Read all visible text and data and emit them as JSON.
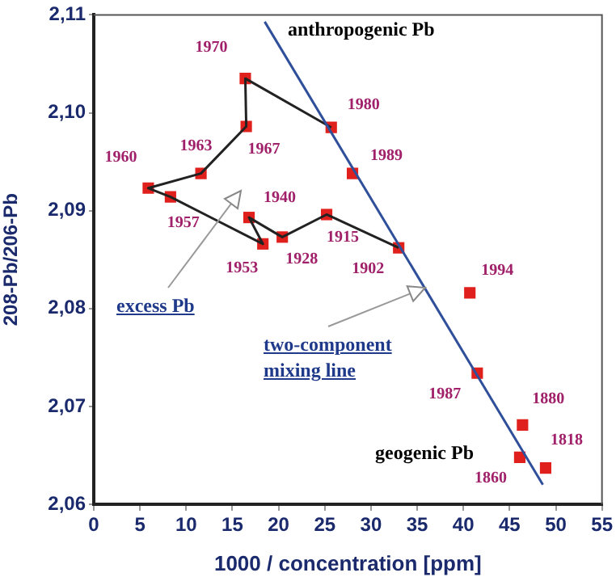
{
  "chart_data": {
    "type": "scatter",
    "xlabel": "1000 / concentration [ppm]",
    "ylabel": "208-Pb/206-Pb",
    "xlim": [
      0,
      55
    ],
    "xticks": [
      0,
      5,
      10,
      15,
      20,
      25,
      30,
      35,
      40,
      45,
      50,
      55
    ],
    "ylim": [
      2.06,
      2.11
    ],
    "yticks": [
      {
        "value": 2.06,
        "label": "2,06"
      },
      {
        "value": 2.07,
        "label": "2,07"
      },
      {
        "value": 2.08,
        "label": "2,08"
      },
      {
        "value": 2.09,
        "label": "2,09"
      },
      {
        "value": 2.1,
        "label": "2,10"
      },
      {
        "value": 2.11,
        "label": "2,11"
      }
    ],
    "grid": false,
    "legend": false,
    "series": [
      {
        "type": "line",
        "color": "#2f4f9a",
        "marker": "none",
        "x": [
          18.5,
          48.6
        ],
        "values": [
          2.1093,
          2.062
        ]
      },
      {
        "type": "line",
        "color": "#222222",
        "marker": "none",
        "x": [
          33.0,
          25.2,
          20.4,
          16.8,
          18.3,
          8.3,
          5.9,
          11.6,
          16.5,
          16.4,
          25.7
        ],
        "values": [
          2.0862,
          2.0896,
          2.0873,
          2.0893,
          2.0866,
          2.0914,
          2.0923,
          2.0938,
          2.0986,
          2.1035,
          2.0985
        ]
      },
      {
        "type": "scatter",
        "color": "#e0201c",
        "marker": "square",
        "x": [
          48.9,
          46.1,
          46.4,
          33.0,
          25.2,
          20.4,
          16.8,
          18.3,
          8.3,
          5.9,
          11.6,
          16.5,
          16.4,
          25.7,
          41.5,
          28.0,
          40.7
        ],
        "values": [
          2.0637,
          2.0648,
          2.0681,
          2.0862,
          2.0896,
          2.0873,
          2.0893,
          2.0866,
          2.0914,
          2.0923,
          2.0938,
          2.0986,
          2.1035,
          2.0985,
          2.0734,
          2.0938,
          2.0816
        ]
      }
    ],
    "annotations": [
      {
        "text": "1818",
        "x": 48.9,
        "y": 2.0637
      },
      {
        "text": "1860",
        "x": 46.1,
        "y": 2.0648
      },
      {
        "text": "1880",
        "x": 46.4,
        "y": 2.0681
      },
      {
        "text": "1902",
        "x": 33.0,
        "y": 2.0862
      },
      {
        "text": "1915",
        "x": 25.2,
        "y": 2.0896
      },
      {
        "text": "1928",
        "x": 20.4,
        "y": 2.0873
      },
      {
        "text": "1940",
        "x": 16.8,
        "y": 2.0893
      },
      {
        "text": "1953",
        "x": 18.3,
        "y": 2.0866
      },
      {
        "text": "1957",
        "x": 8.3,
        "y": 2.0914
      },
      {
        "text": "1960",
        "x": 5.9,
        "y": 2.0923
      },
      {
        "text": "1963",
        "x": 11.6,
        "y": 2.0938
      },
      {
        "text": "1967",
        "x": 16.5,
        "y": 2.0986
      },
      {
        "text": "1970",
        "x": 16.4,
        "y": 2.1035
      },
      {
        "text": "1980",
        "x": 25.7,
        "y": 2.0985
      },
      {
        "text": "1987",
        "x": 41.5,
        "y": 2.0734
      },
      {
        "text": "1989",
        "x": 28.0,
        "y": 2.0938
      },
      {
        "text": "1994",
        "x": 40.7,
        "y": 2.0816
      },
      "anthropogenic Pb",
      "geogenic Pb",
      "excess Pb",
      "two-component mixing line"
    ]
  }
}
